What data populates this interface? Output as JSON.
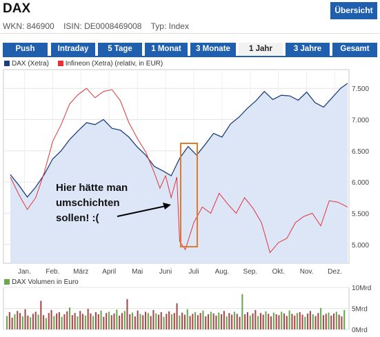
{
  "header": {
    "title": "DAX",
    "overview_button": "Übersicht",
    "wkn": "WKN: 846900",
    "isin": "ISIN: DE0008469008",
    "type": "Typ: Index"
  },
  "tabs": [
    {
      "label": "Push",
      "active": false
    },
    {
      "label": "Intraday",
      "active": false
    },
    {
      "label": "5 Tage",
      "active": false
    },
    {
      "label": "1 Monat",
      "active": false
    },
    {
      "label": "3 Monate",
      "active": false
    },
    {
      "label": "1 Jahr",
      "active": true
    },
    {
      "label": "3 Jahre",
      "active": false
    },
    {
      "label": "Gesamt",
      "active": false
    }
  ],
  "legend": {
    "dax": "DAX (Xetra)",
    "infineon": "Infineon (Xetra) (relativ, in EUR)",
    "volume": "DAX Volumen in Euro"
  },
  "colors": {
    "dax_line": "#1c3f7c",
    "dax_fill": "#dde6f7",
    "infineon_line": "#e0343a",
    "volume_bar": "#a84a4a",
    "volume_bar_green": "#6aa84f",
    "tab_blue": "#1f5fae",
    "annotation_box": "#e07a28"
  },
  "annotation": {
    "text_lines": [
      "Hier hätte man",
      "umschichten",
      "sollen! :("
    ]
  },
  "chart_data": [
    {
      "type": "line",
      "x_ticks": [
        "Jan.",
        "Feb.",
        "März",
        "April",
        "Mai",
        "Juni",
        "Juli",
        "Aug.",
        "Sep.",
        "Okt.",
        "Nov.",
        "Dez."
      ],
      "y_ticks": [
        "5.000",
        "5.500",
        "6.000",
        "6.500",
        "7.000",
        "7.500"
      ],
      "ylim": [
        4700,
        7800
      ],
      "grid": true,
      "legend_position": "top-left",
      "series": [
        {
          "name": "DAX (Xetra)",
          "x": [
            0,
            0.3,
            0.6,
            0.9,
            1.2,
            1.5,
            1.8,
            2.1,
            2.4,
            2.7,
            3.0,
            3.3,
            3.6,
            3.9,
            4.2,
            4.5,
            4.8,
            5.1,
            5.4,
            5.7,
            6.0,
            6.3,
            6.6,
            6.9,
            7.2,
            7.5,
            7.8,
            8.1,
            8.4,
            8.7,
            9.0,
            9.3,
            9.6,
            9.9,
            10.2,
            10.5,
            10.8,
            11.1,
            11.4,
            11.7,
            11.95
          ],
          "values": [
            6120,
            5950,
            5760,
            5920,
            6120,
            6370,
            6500,
            6680,
            6820,
            6950,
            6920,
            7000,
            6860,
            6830,
            6720,
            6560,
            6430,
            6250,
            6180,
            6100,
            6380,
            6570,
            6430,
            6600,
            6780,
            6720,
            6930,
            7040,
            7180,
            7300,
            7450,
            7320,
            7390,
            7380,
            7310,
            7440,
            7270,
            7200,
            7350,
            7500,
            7580
          ]
        },
        {
          "name": "Infineon (Xetra) (relativ, in EUR)",
          "x": [
            0,
            0.3,
            0.6,
            0.9,
            1.2,
            1.5,
            1.8,
            2.1,
            2.4,
            2.7,
            3.0,
            3.3,
            3.6,
            3.9,
            4.2,
            4.5,
            4.8,
            5.1,
            5.3,
            5.5,
            5.7,
            5.9,
            6.0,
            6.2,
            6.5,
            6.8,
            7.1,
            7.4,
            7.7,
            8.0,
            8.3,
            8.6,
            8.9,
            9.2,
            9.5,
            9.8,
            10.1,
            10.4,
            10.7,
            11.0,
            11.3,
            11.6,
            11.95
          ],
          "values": [
            6080,
            5800,
            5560,
            5750,
            6150,
            6650,
            6920,
            7250,
            7400,
            7500,
            7350,
            7450,
            7480,
            7300,
            6950,
            6700,
            6480,
            6150,
            5900,
            6100,
            5750,
            6080,
            5050,
            4920,
            5350,
            5600,
            5500,
            5820,
            5650,
            5500,
            5750,
            5580,
            5350,
            4870,
            5030,
            5100,
            5350,
            5450,
            5500,
            5300,
            5700,
            5680,
            5600
          ]
        }
      ]
    },
    {
      "type": "bar",
      "series_name": "DAX Volumen in Euro",
      "y_ticks": [
        "0Mrd",
        "5Mrd",
        "10Mrd"
      ],
      "ylim": [
        0,
        10
      ],
      "values": [
        3.2,
        4.1,
        2.8,
        3.6,
        4.4,
        3.9,
        3.1,
        4.8,
        3.3,
        2.9,
        3.7,
        4.2,
        3.5,
        6.8,
        3.4,
        2.7,
        3.9,
        4.6,
        3.2,
        3.8,
        4.1,
        3.0,
        3.6,
        4.3,
        5.2,
        3.4,
        3.9,
        3.1,
        4.4,
        3.7,
        3.3,
        4.9,
        3.8,
        3.2,
        4.1,
        3.6,
        4.5,
        3.0,
        3.9,
        4.2,
        3.4,
        3.8,
        4.7,
        3.3,
        3.9,
        4.4,
        7.2,
        3.6,
        4.0,
        3.1,
        4.5,
        3.7,
        3.4,
        4.2,
        3.9,
        3.2,
        4.6,
        3.8,
        3.5,
        4.1,
        3.0,
        3.7,
        4.3,
        3.6,
        3.9,
        6.2,
        3.3,
        4.0,
        3.5,
        4.8,
        3.2,
        3.7,
        4.1,
        3.4,
        3.9,
        4.5,
        3.1,
        3.6,
        4.2,
        3.8,
        3.3,
        4.0,
        3.6,
        4.4,
        3.1,
        3.9,
        3.5,
        4.2,
        3.7,
        3.0,
        8.4,
        3.6,
        4.1,
        3.3,
        3.8,
        4.6,
        3.2,
        3.9,
        3.5,
        4.3,
        3.7,
        3.1,
        4.0,
        3.6,
        3.4,
        4.2,
        3.8,
        3.2,
        4.5,
        3.7,
        3.3,
        3.9,
        4.1,
        3.5,
        3.0,
        3.8,
        4.4,
        3.6,
        3.2,
        3.9,
        5.1,
        3.4,
        3.7,
        4.0,
        3.3,
        3.8,
        4.2,
        3.5,
        3.1,
        4.6
      ]
    }
  ]
}
